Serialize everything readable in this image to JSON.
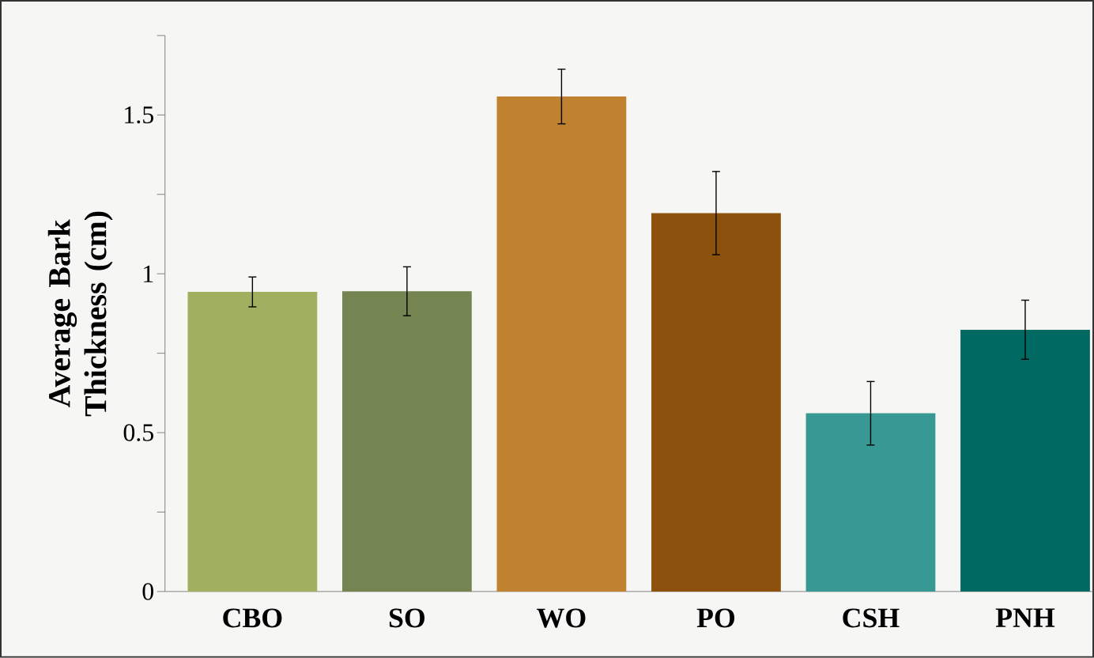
{
  "chart_data": {
    "type": "bar",
    "ylabel": "Average Bark Thickness (cm)",
    "categories": [
      "CBO",
      "SO",
      "WO",
      "PO",
      "CSH",
      "PNH"
    ],
    "values": [
      0.943,
      0.945,
      1.558,
      1.191,
      0.561,
      0.824
    ],
    "errors": [
      0.047,
      0.077,
      0.086,
      0.131,
      0.1,
      0.093
    ],
    "colors": [
      "#a0af60",
      "#748552",
      "#c08230",
      "#8b510d",
      "#389893",
      "#006961"
    ],
    "ylim": [
      0,
      1.75
    ],
    "yticks": [
      0,
      {
        "value": 0.25,
        "label": null
      },
      0.5,
      {
        "value": 0.75,
        "label": null
      },
      1,
      {
        "value": 1.25,
        "label": null
      },
      1.5,
      {
        "value": 1.75,
        "label": null
      }
    ]
  }
}
